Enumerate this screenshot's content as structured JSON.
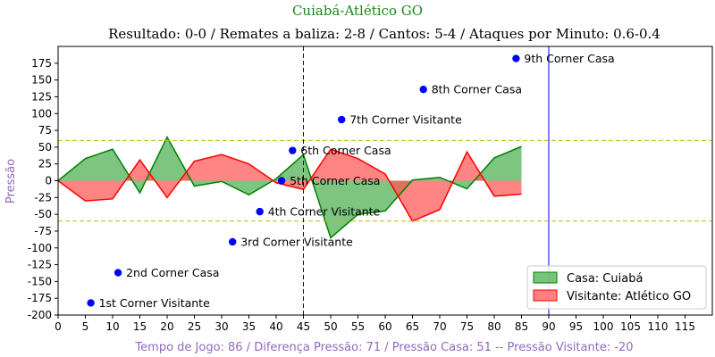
{
  "chart_data": {
    "type": "area",
    "title": "Cuiabá-Atlético GO",
    "subtitle": "Resultado: 0-0 / Remates a baliza: 2-8 / Cantos: 5-4 / Ataques por Minuto: 0.6-0.4",
    "xlabel": "Tempo de Jogo: 86 / Diferença Pressão: 71 / Pressão Casa: 51 -- Pressão Visitante: -20",
    "ylabel": "Pressão",
    "xlim": [
      0,
      120
    ],
    "ylim": [
      -200,
      200
    ],
    "xticks": [
      0,
      5,
      10,
      15,
      20,
      25,
      30,
      35,
      40,
      45,
      50,
      55,
      60,
      65,
      70,
      75,
      80,
      85,
      90,
      95,
      100,
      105,
      110,
      115
    ],
    "yticks": [
      -200,
      -175,
      -150,
      -125,
      -100,
      -75,
      -50,
      -25,
      0,
      25,
      50,
      75,
      100,
      125,
      150,
      175
    ],
    "series": [
      {
        "name": "Casa: Cuiabá",
        "color": "#008000",
        "fill": "#4caf50",
        "x": [
          0,
          5,
          10,
          15,
          20,
          25,
          30,
          35,
          40,
          45,
          50,
          55,
          60,
          65,
          70,
          75,
          80,
          85
        ],
        "values": [
          0,
          33,
          47,
          -18,
          65,
          -8,
          -1,
          -21,
          3,
          39,
          -85,
          -50,
          -45,
          1,
          5,
          -12,
          34,
          51
        ]
      },
      {
        "name": "Visitante: Atlético GO",
        "color": "#ff0000",
        "fill": "#ff5555",
        "x": [
          0,
          5,
          10,
          15,
          20,
          25,
          30,
          35,
          40,
          45,
          50,
          55,
          60,
          65,
          70,
          75,
          80,
          85
        ],
        "values": [
          0,
          -30,
          -27,
          31,
          -25,
          29,
          39,
          25,
          -3,
          -13,
          47,
          33,
          10,
          -60,
          -43,
          43,
          -23,
          -20
        ]
      }
    ],
    "hlines": [
      {
        "y": 60,
        "color": "#bfbf00",
        "style": "dashed"
      },
      {
        "y": -60,
        "color": "#bfbf00",
        "style": "dashed"
      }
    ],
    "vlines": [
      {
        "x": 45,
        "color": "#0000cc",
        "style": "dashed"
      },
      {
        "x": 90,
        "color": "#0000ff",
        "style": "solid"
      }
    ],
    "corners": [
      {
        "x": 6,
        "y": -182,
        "label": "1st Corner Visitante"
      },
      {
        "x": 11,
        "y": -137,
        "label": "2nd Corner Casa"
      },
      {
        "x": 32,
        "y": -91,
        "label": "3rd Corner Visitante"
      },
      {
        "x": 37,
        "y": -46,
        "label": "4th Corner Visitante"
      },
      {
        "x": 41,
        "y": 0,
        "label": "5th Corner Casa"
      },
      {
        "x": 43,
        "y": 45,
        "label": "6th Corner Casa"
      },
      {
        "x": 52,
        "y": 91,
        "label": "7th Corner Visitante"
      },
      {
        "x": 67,
        "y": 136,
        "label": "8th Corner Casa"
      },
      {
        "x": 84,
        "y": 182,
        "label": "9th Corner Casa"
      }
    ],
    "corner_color": "#0000ff",
    "legend_position": "lower-right",
    "grid": false
  }
}
